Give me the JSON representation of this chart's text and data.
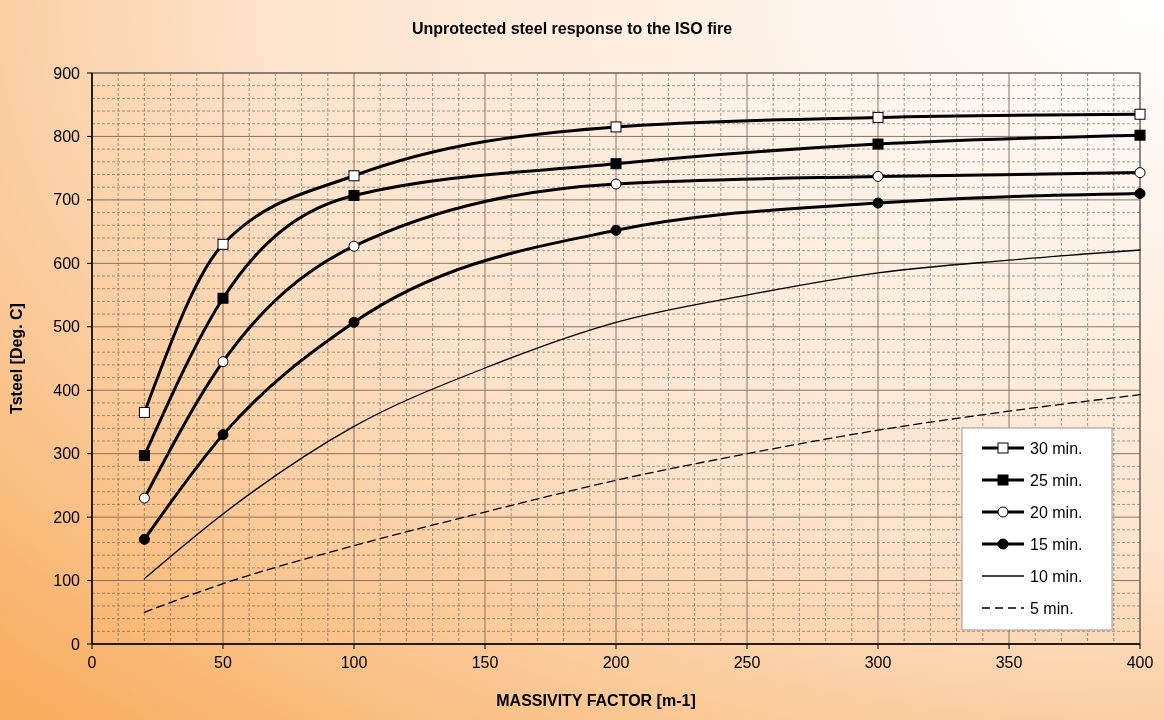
{
  "chart_data": {
    "type": "line",
    "title": "Unprotected steel response to the ISO fire",
    "xlabel": "MASSIVITY FACTOR [m-1]",
    "ylabel": "Tsteel [Deg. C]",
    "xlim": [
      0,
      400
    ],
    "xticks": [
      0,
      50,
      100,
      150,
      200,
      250,
      300,
      350,
      400
    ],
    "ylim": [
      0,
      900
    ],
    "yticks": [
      0,
      100,
      200,
      300,
      400,
      500,
      600,
      700,
      800,
      900
    ],
    "grid": true,
    "legend": "bottom right",
    "series": [
      {
        "name": "30 min.",
        "color": "#000000",
        "marker": "square",
        "colors": [
          "#ffffff",
          "#ffffff",
          "#ffffff",
          "#ffffff",
          "#ffffff",
          "#ffffff"
        ],
        "line_style": "solid",
        "x": [
          20,
          50,
          100,
          200,
          300,
          400
        ],
        "values": [
          365,
          630,
          738,
          815,
          830,
          835
        ]
      },
      {
        "name": "25 min.",
        "color": "#000000",
        "marker": "square",
        "line_style": "solid",
        "x": [
          20,
          50,
          100,
          200,
          300,
          400
        ],
        "values": [
          297,
          545,
          707,
          757,
          788,
          802
        ]
      },
      {
        "name": "20 min.",
        "color": "#000000",
        "marker": "circle",
        "colors": [
          "#ffffff",
          "#ffffff",
          "#ffffff",
          "#ffffff",
          "#ffffff",
          "#ffffff"
        ],
        "line_style": "solid",
        "x": [
          20,
          50,
          100,
          200,
          300,
          400
        ],
        "values": [
          230,
          445,
          627,
          725,
          737,
          743
        ]
      },
      {
        "name": "15 min.",
        "color": "#000000",
        "marker": "circle",
        "line_style": "solid",
        "x": [
          20,
          50,
          100,
          200,
          300,
          400
        ],
        "values": [
          165,
          330,
          507,
          652,
          695,
          710
        ]
      },
      {
        "name": "10 min.",
        "color": "#000000",
        "marker": "none",
        "line_style": "solid",
        "x": [
          20,
          50,
          100,
          150,
          200,
          250,
          300,
          350,
          400
        ],
        "values": [
          103,
          205,
          343,
          435,
          507,
          550,
          585,
          605,
          621
        ]
      },
      {
        "name": "5 min.",
        "color": "#000000",
        "marker": "none",
        "line_style": "dashed",
        "x": [
          20,
          50,
          100,
          150,
          200,
          250,
          300,
          350,
          400
        ],
        "values": [
          50,
          95,
          155,
          208,
          258,
          300,
          337,
          367,
          393
        ]
      }
    ]
  }
}
